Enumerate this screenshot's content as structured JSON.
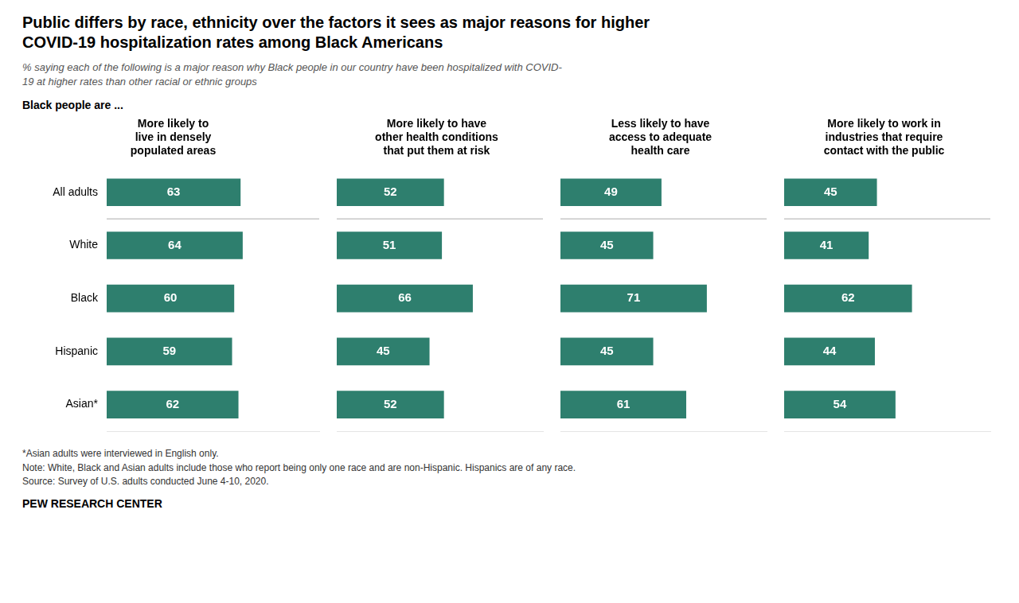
{
  "title": "Public differs by race, ethnicity over the factors it sees as major reasons for higher\nCOVID-19 hospitalization rates among Black Americans",
  "subtitle": "% saying each of the following is a major reason why Black people in our country have been hospitalized with COVID-\n19 at higher rates than other racial or ethnic groups",
  "annotations": [
    "Black people are ...",
    "*Asian adults were interviewed in English only.",
    "Note: White, Black and Asian adults include those who report being only one race and are non-Hispanic. Hispanics are of any race.",
    "Source: Survey of U.S. adults conducted June 4-10, 2020.",
    "PEW RESEARCH CENTER"
  ],
  "chart_data": [
    {
      "type": "bar",
      "orientation": "horizontal",
      "title": "More likely to\nlive in densely\npopulated areas",
      "categories": [
        "All adults",
        "White",
        "Black",
        "Hispanic",
        "Asian*"
      ],
      "values": [
        63,
        64,
        60,
        59,
        62
      ],
      "color": "#2E7F6E",
      "xlim": [
        0,
        100
      ],
      "grid": false,
      "data_labels": true,
      "tick_labels": "y"
    },
    {
      "type": "bar",
      "orientation": "horizontal",
      "title": "More likely to have\nother health conditions\nthat put them at risk",
      "categories": [
        "All adults",
        "White",
        "Black",
        "Hispanic",
        "Asian*"
      ],
      "values": [
        52,
        51,
        66,
        45,
        52
      ],
      "color": "#2E7F6E",
      "xlim": [
        0,
        100
      ],
      "grid": false,
      "data_labels": true,
      "tick_labels": false
    },
    {
      "type": "bar",
      "orientation": "horizontal",
      "title": "Less likely to have\naccess to adequate\nhealth care",
      "categories": [
        "All adults",
        "White",
        "Black",
        "Hispanic",
        "Asian*"
      ],
      "values": [
        49,
        45,
        71,
        45,
        61
      ],
      "color": "#2E7F6E",
      "xlim": [
        0,
        100
      ],
      "grid": false,
      "data_labels": true,
      "tick_labels": false
    },
    {
      "type": "bar",
      "orientation": "horizontal",
      "title": "More likely to work in\nindustries that require\ncontact with the public",
      "categories": [
        "All adults",
        "White",
        "Black",
        "Hispanic",
        "Asian*"
      ],
      "values": [
        45,
        41,
        62,
        44,
        54
      ],
      "color": "#2E7F6E",
      "xlim": [
        0,
        100
      ],
      "grid": false,
      "data_labels": true,
      "tick_labels": false
    }
  ]
}
